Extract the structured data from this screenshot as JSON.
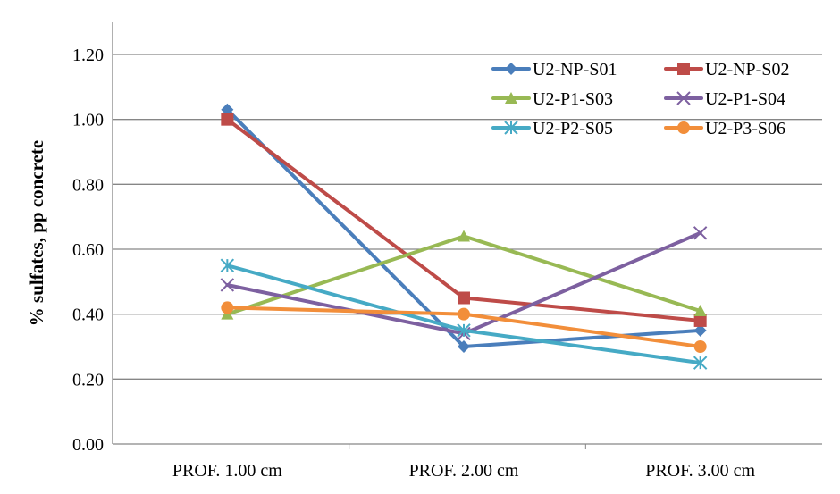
{
  "chart_data": {
    "type": "line",
    "title": "",
    "xlabel": "",
    "ylabel": "% sulfates, pp concrete",
    "categories": [
      "PROF.   1.00 cm",
      "PROF.   2.00 cm",
      "PROF.   3.00 cm"
    ],
    "ylim": [
      0,
      1.2
    ],
    "yticks": [
      "0.00",
      "0.20",
      "0.40",
      "0.60",
      "0.80",
      "1.00",
      "1.20"
    ],
    "grid": true,
    "legend_placement": "top-right",
    "series": [
      {
        "name": "U2-NP-S01",
        "values": [
          1.03,
          0.3,
          0.35
        ],
        "color": "#4A7EBB",
        "marker": "diamond"
      },
      {
        "name": "U2-NP-S02",
        "values": [
          1.0,
          0.45,
          0.38
        ],
        "color": "#BE4B48",
        "marker": "square"
      },
      {
        "name": "U2-P1-S03",
        "values": [
          0.4,
          0.64,
          0.41
        ],
        "color": "#98B954",
        "marker": "triangle"
      },
      {
        "name": "U2-P1-S04",
        "values": [
          0.49,
          0.34,
          0.65
        ],
        "color": "#7D60A0",
        "marker": "x"
      },
      {
        "name": "U2-P2-S05",
        "values": [
          0.55,
          0.35,
          0.25
        ],
        "color": "#46AAC5",
        "marker": "star"
      },
      {
        "name": "U2-P3-S06",
        "values": [
          0.42,
          0.4,
          0.3
        ],
        "color": "#F28E3A",
        "marker": "circle"
      }
    ]
  }
}
